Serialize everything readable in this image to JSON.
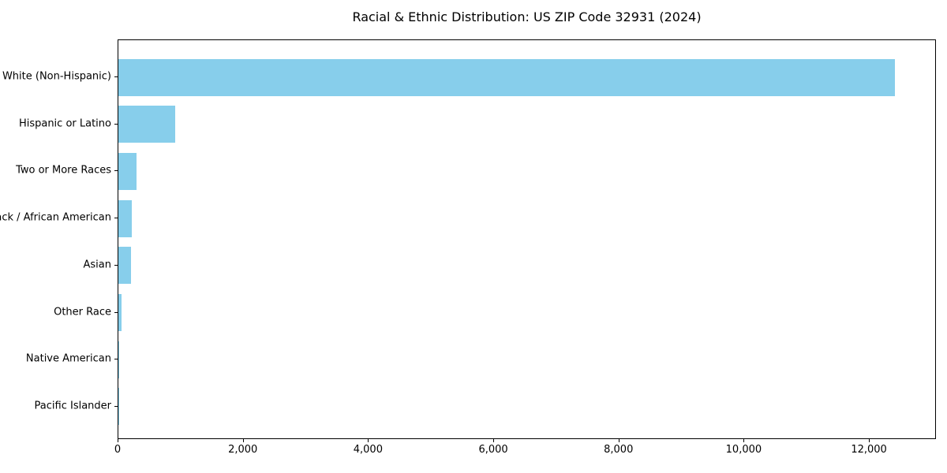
{
  "chart_data": {
    "type": "bar",
    "orientation": "horizontal",
    "title": "Racial & Ethnic Distribution: US ZIP Code 32931 (2024)",
    "categories": [
      "White (Non-Hispanic)",
      "Hispanic or Latino",
      "Two or More Races",
      "Black / African American",
      "Asian",
      "Other Race",
      "Native American",
      "Pacific Islander"
    ],
    "values": [
      12430,
      915,
      285,
      215,
      205,
      50,
      15,
      5
    ],
    "xlabel": "",
    "ylabel": "",
    "xlim": [
      0,
      13070
    ],
    "xticks": [
      0,
      2000,
      4000,
      6000,
      8000,
      10000,
      12000
    ],
    "xtick_labels": [
      "0",
      "2,000",
      "4,000",
      "6,000",
      "8,000",
      "10,000",
      "12,000"
    ],
    "bar_color": "#87CEEB",
    "background_color": "#ffffff",
    "axis_color": "#000000",
    "grid": false,
    "legend": "none"
  }
}
